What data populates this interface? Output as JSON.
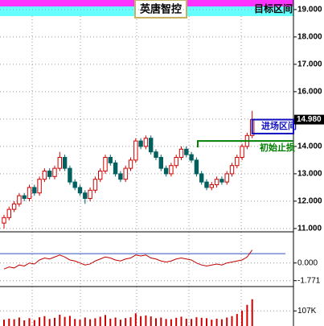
{
  "chart_data": {
    "type": "candlestick",
    "title": "英唐智控",
    "ohlc": [
      [
        11.2,
        11.5,
        11.0,
        11.4
      ],
      [
        11.4,
        11.8,
        11.3,
        11.7
      ],
      [
        11.7,
        12.0,
        11.6,
        11.9
      ],
      [
        11.9,
        12.3,
        11.8,
        12.2
      ],
      [
        12.2,
        12.3,
        12.0,
        12.1
      ],
      [
        12.1,
        12.6,
        12.0,
        12.5
      ],
      [
        12.5,
        12.6,
        12.2,
        12.3
      ],
      [
        12.3,
        12.9,
        12.2,
        12.8
      ],
      [
        12.8,
        13.2,
        12.7,
        13.1
      ],
      [
        13.1,
        13.2,
        12.8,
        12.9
      ],
      [
        12.9,
        13.3,
        12.8,
        13.2
      ],
      [
        13.2,
        13.8,
        13.1,
        13.6
      ],
      [
        13.6,
        13.7,
        13.1,
        13.2
      ],
      [
        13.2,
        13.3,
        12.6,
        12.7
      ],
      [
        12.7,
        12.8,
        12.4,
        12.5
      ],
      [
        12.5,
        12.6,
        12.2,
        12.3
      ],
      [
        12.3,
        12.4,
        11.9,
        12.1
      ],
      [
        12.1,
        12.5,
        12.0,
        12.4
      ],
      [
        12.4,
        12.9,
        12.3,
        12.8
      ],
      [
        12.8,
        13.2,
        12.7,
        13.1
      ],
      [
        13.1,
        13.7,
        13.0,
        13.6
      ],
      [
        13.6,
        13.7,
        13.3,
        13.4
      ],
      [
        13.4,
        13.5,
        12.9,
        13.0
      ],
      [
        13.0,
        13.1,
        12.7,
        12.8
      ],
      [
        12.8,
        13.3,
        12.7,
        13.2
      ],
      [
        13.2,
        13.6,
        13.1,
        13.5
      ],
      [
        13.5,
        14.3,
        13.4,
        14.2
      ],
      [
        14.2,
        14.3,
        13.9,
        14.0
      ],
      [
        14.0,
        14.4,
        13.9,
        14.3
      ],
      [
        14.3,
        14.4,
        13.7,
        13.8
      ],
      [
        13.8,
        13.9,
        13.5,
        13.6
      ],
      [
        13.6,
        13.7,
        13.1,
        13.2
      ],
      [
        13.2,
        13.3,
        12.9,
        13.0
      ],
      [
        13.0,
        13.4,
        12.9,
        13.3
      ],
      [
        13.3,
        13.7,
        13.2,
        13.6
      ],
      [
        13.6,
        14.0,
        13.5,
        13.9
      ],
      [
        13.9,
        14.0,
        13.6,
        13.7
      ],
      [
        13.7,
        13.8,
        13.4,
        13.5
      ],
      [
        13.5,
        13.6,
        12.9,
        13.0
      ],
      [
        13.0,
        13.1,
        12.6,
        12.7
      ],
      [
        12.7,
        12.8,
        12.4,
        12.5
      ],
      [
        12.5,
        12.7,
        12.4,
        12.6
      ],
      [
        12.6,
        12.9,
        12.5,
        12.8
      ],
      [
        12.8,
        12.9,
        12.6,
        12.7
      ],
      [
        12.7,
        13.1,
        12.6,
        13.0
      ],
      [
        13.0,
        13.4,
        12.9,
        13.3
      ],
      [
        13.3,
        13.7,
        13.2,
        13.6
      ],
      [
        13.6,
        14.1,
        13.5,
        14.0
      ],
      [
        14.0,
        14.5,
        13.9,
        14.4
      ],
      [
        14.4,
        15.3,
        14.3,
        14.98
      ]
    ],
    "up_color": "#d00000",
    "down_color": "#006060",
    "ylim": [
      10.88,
      19.35
    ],
    "yticks": [
      {
        "value": 19,
        "label": "19.000"
      },
      {
        "value": 18,
        "label": "18.000"
      },
      {
        "value": 17,
        "label": "17.000"
      },
      {
        "value": 16,
        "label": "16.000"
      },
      {
        "value": 15,
        "label": "15.000"
      },
      {
        "value": 14,
        "label": "14.000"
      },
      {
        "value": 13,
        "label": "13.000"
      },
      {
        "value": 12,
        "label": "12.000"
      },
      {
        "value": 11,
        "label": "11.000"
      }
    ],
    "last_price": {
      "value": 14.98,
      "label": "14.980"
    },
    "target_label": "目标区间",
    "entry_zone": {
      "label": "进场区间",
      "top": 14.98,
      "bottom": 14.47
    },
    "stop_loss": {
      "label": "初始止损",
      "value": 14.2
    },
    "indicator": {
      "color": "#c00000",
      "ref_line": 0.93,
      "ref_color": "#3050c0",
      "values": [
        -0.6,
        -0.4,
        -0.5,
        -0.2,
        -0.3,
        0.0,
        -0.1,
        0.3,
        0.5,
        0.4,
        0.6,
        0.8,
        0.6,
        0.3,
        0.2,
        0.0,
        -0.2,
        -0.1,
        0.2,
        0.4,
        0.6,
        0.5,
        0.3,
        0.2,
        0.4,
        0.5,
        0.8,
        0.7,
        0.8,
        0.5,
        0.4,
        0.2,
        0.1,
        0.2,
        0.4,
        0.5,
        0.4,
        0.3,
        0.0,
        -0.2,
        -0.3,
        -0.2,
        -0.1,
        -0.2,
        0.0,
        0.1,
        0.2,
        0.3,
        0.6,
        1.3
      ],
      "ylim": [
        -2.36,
        3.12
      ],
      "yticks": [
        {
          "value": 0,
          "label": "0.000"
        },
        {
          "value": -1.771,
          "label": "-1.771"
        }
      ]
    },
    "volume": {
      "color": "#d00000",
      "values": [
        45000,
        52000,
        48000,
        60000,
        40000,
        55000,
        42000,
        62000,
        70000,
        50000,
        58000,
        80000,
        65000,
        72000,
        50000,
        45000,
        60000,
        48000,
        55000,
        66000,
        78000,
        52000,
        60000,
        45000,
        56000,
        62000,
        90000,
        70000,
        75000,
        68000,
        55000,
        60000,
        50000,
        48000,
        58000,
        66000,
        52000,
        50000,
        62000,
        58000,
        55000,
        45000,
        52000,
        48000,
        60000,
        70000,
        85000,
        110000,
        150000,
        190000
      ],
      "ylim": [
        0,
        280000
      ],
      "yticks": [
        {
          "value": 107000,
          "label": "107K"
        }
      ]
    }
  }
}
